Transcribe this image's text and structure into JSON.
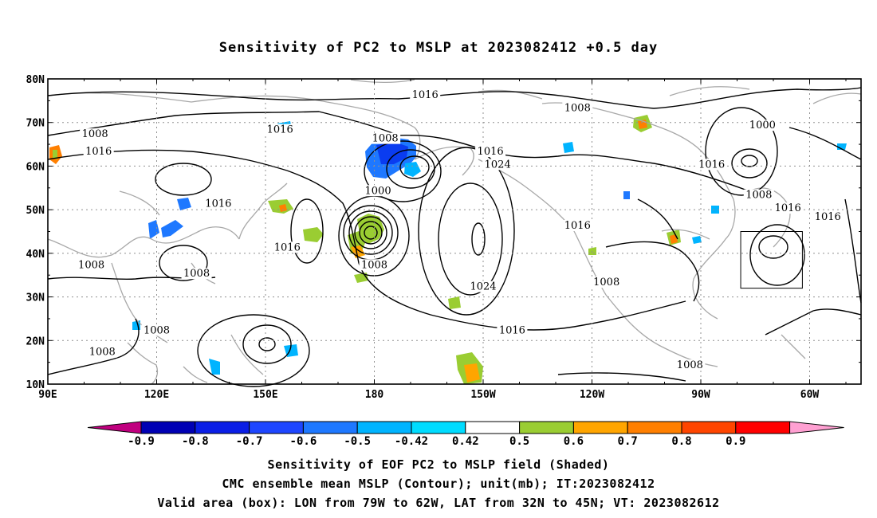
{
  "title": "Sensitivity of PC2 to MSLP at 2023082412 +0.5 day",
  "axes": {
    "lat_ticks": [
      "80N",
      "70N",
      "60N",
      "50N",
      "40N",
      "30N",
      "20N",
      "10N"
    ],
    "lon_ticks": [
      "90E",
      "120E",
      "150E",
      "180",
      "150W",
      "120W",
      "90W",
      "60W"
    ]
  },
  "colorbar": {
    "labels": [
      "-0.9",
      "-0.8",
      "-0.7",
      "-0.6",
      "-0.5",
      "-0.42",
      "0.42",
      "0.5",
      "0.6",
      "0.7",
      "0.8",
      "0.9"
    ],
    "colors": [
      "#c0007f",
      "#0000b4",
      "#0a1ee6",
      "#1e46ff",
      "#1e78ff",
      "#00b4ff",
      "#00dcff",
      "#ffffff",
      "#9acd32",
      "#ffa500",
      "#ff7f00",
      "#ff4500",
      "#ff0000",
      "#ffa0d2"
    ]
  },
  "contours": {
    "labels": [
      {
        "text": "1016",
        "lon": -166,
        "lat": 76
      },
      {
        "text": "1008",
        "lon": -124,
        "lat": 73
      },
      {
        "text": "1000",
        "lon": -73,
        "lat": 69
      },
      {
        "text": "1008",
        "lon": 103,
        "lat": 67
      },
      {
        "text": "1016",
        "lon": 154,
        "lat": 68
      },
      {
        "text": "1008",
        "lon": -177,
        "lat": 66
      },
      {
        "text": "1016",
        "lon": 104,
        "lat": 63
      },
      {
        "text": "1016",
        "lon": -148,
        "lat": 63
      },
      {
        "text": "1024",
        "lon": -146,
        "lat": 60
      },
      {
        "text": "1000",
        "lon": -179,
        "lat": 54
      },
      {
        "text": "1016",
        "lon": -87,
        "lat": 60
      },
      {
        "text": "1008",
        "lon": -74,
        "lat": 53
      },
      {
        "text": "1016",
        "lon": -66,
        "lat": 50
      },
      {
        "text": "1016",
        "lon": -55,
        "lat": 48
      },
      {
        "text": "1016",
        "lon": 137,
        "lat": 51
      },
      {
        "text": "1016",
        "lon": -124,
        "lat": 46
      },
      {
        "text": "1016",
        "lon": 156,
        "lat": 41
      },
      {
        "text": "1008",
        "lon": 102,
        "lat": 37
      },
      {
        "text": "1008",
        "lon": 131,
        "lat": 35
      },
      {
        "text": "1008",
        "lon": 180,
        "lat": 37
      },
      {
        "text": "1024",
        "lon": -150,
        "lat": 32
      },
      {
        "text": "1008",
        "lon": -116,
        "lat": 33
      },
      {
        "text": "1016",
        "lon": -142,
        "lat": 22
      },
      {
        "text": "1008",
        "lon": 120,
        "lat": 22
      },
      {
        "text": "1008",
        "lon": 105,
        "lat": 17
      },
      {
        "text": "1008",
        "lon": -93,
        "lat": 14
      }
    ]
  },
  "captions": [
    "Sensitivity of EOF PC2 to MSLP field (Shaded)",
    "CMC ensemble mean MSLP (Contour); unit(mb); IT:2023082412",
    "Valid area (box): LON from 79W to 62W, LAT from 32N to 45N; VT: 2023082612"
  ],
  "valid_box": {
    "lon_min": -79,
    "lon_max": -62,
    "lat_min": 32,
    "lat_max": 45
  }
}
